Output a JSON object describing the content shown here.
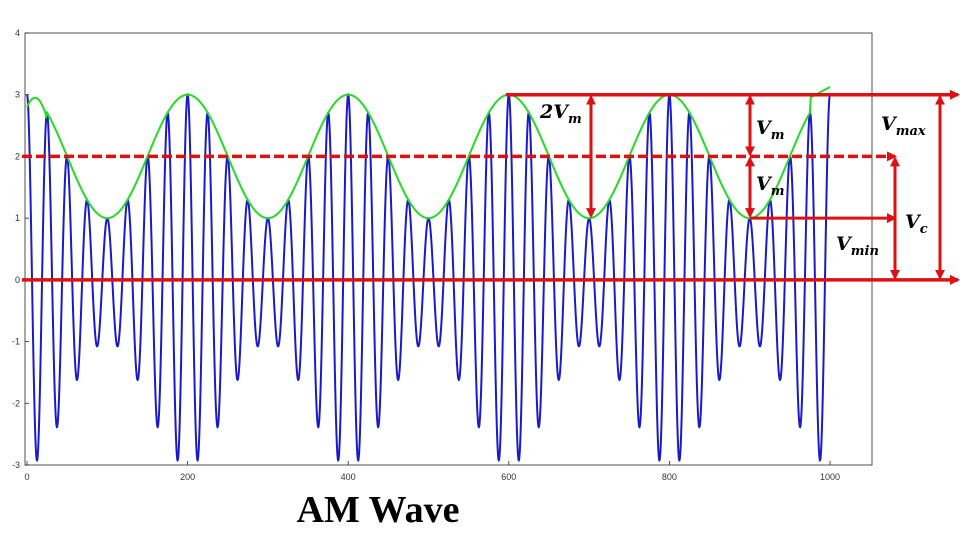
{
  "chart_data": {
    "type": "line",
    "title": "",
    "caption": "AM Wave",
    "xlabel": "",
    "ylabel": "",
    "xlim": [
      0,
      1000
    ],
    "ylim": [
      -3,
      4
    ],
    "x_ticks": [
      0,
      200,
      400,
      600,
      800,
      1000
    ],
    "y_ticks": [
      -3,
      -2,
      -1,
      0,
      1,
      2,
      3,
      4
    ],
    "grid": false,
    "series": [
      {
        "role": "modulated-carrier",
        "color": "#1a1acc",
        "dc_offset": 0,
        "carrier_amplitude": 2,
        "modulation_amplitude": 1,
        "carrier_period": 25,
        "modulation_period": 200,
        "modulation_peak_x": 0,
        "x_start": 0,
        "x_end": 1000
      },
      {
        "role": "upper-envelope",
        "color": "#22dd22",
        "center": 2,
        "amplitude": 1,
        "period": 200,
        "peak_x": 0,
        "x_start": 0,
        "x_end": 1000
      }
    ],
    "reference_lines": {
      "color": "#dd1111",
      "solid_levels": [
        3,
        0
      ],
      "dashed_levels": [
        2
      ],
      "segment_level": 1
    },
    "annotations": [
      {
        "name": "2V",
        "sub": "m"
      },
      {
        "name": "V",
        "sub": "m"
      },
      {
        "name": "V",
        "sub": "m"
      },
      {
        "name": "V",
        "sub": "max"
      },
      {
        "name": "V",
        "sub": "c"
      },
      {
        "name": "V",
        "sub": "min"
      }
    ],
    "colors": {
      "axis": "#262626",
      "tick_label": "#333333",
      "annotation_arrow": "#dd1111"
    }
  }
}
